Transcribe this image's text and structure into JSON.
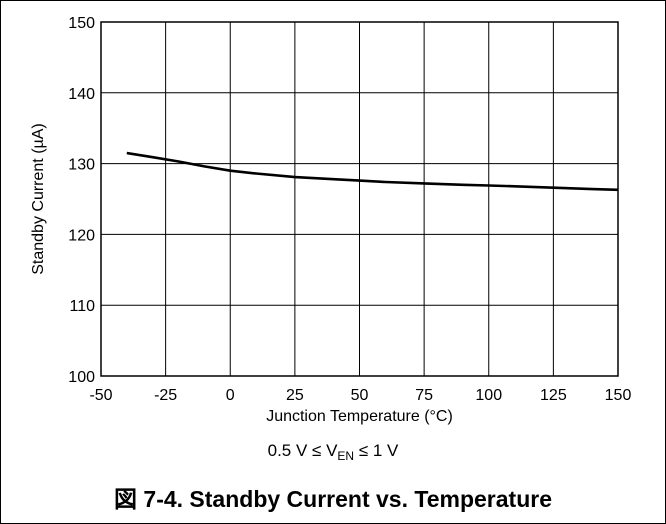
{
  "chart_data": {
    "type": "line",
    "title": "",
    "xlabel": "Junction Temperature (°C)",
    "ylabel": "Standby Current (µA)",
    "xlim": [
      -50,
      150
    ],
    "ylim": [
      100,
      150
    ],
    "xticks": [
      -50,
      -25,
      0,
      25,
      50,
      75,
      100,
      125,
      150
    ],
    "yticks": [
      100,
      110,
      120,
      130,
      140,
      150
    ],
    "x_tick_labels": [
      "-50",
      "-25",
      "0",
      "25",
      "50",
      "75",
      "100",
      "125",
      "150"
    ],
    "y_tick_labels": [
      "100",
      "110",
      "120",
      "130",
      "140",
      "150"
    ],
    "grid": true,
    "series": [
      {
        "x": [
          -40,
          -30,
          -20,
          -10,
          0,
          10,
          25,
          40,
          50,
          60,
          75,
          90,
          100,
          110,
          125,
          140,
          150
        ],
        "y": [
          131.5,
          130.9,
          130.3,
          129.6,
          129.0,
          128.6,
          128.1,
          127.8,
          127.6,
          127.4,
          127.2,
          127.0,
          126.9,
          126.8,
          126.6,
          126.4,
          126.3
        ]
      }
    ]
  },
  "condition": {
    "prefix": "0.5 V ≤ V",
    "subscript": "EN",
    "suffix": " ≤ 1 V"
  },
  "figure_title": "図 7-4. Standby Current vs. Temperature"
}
